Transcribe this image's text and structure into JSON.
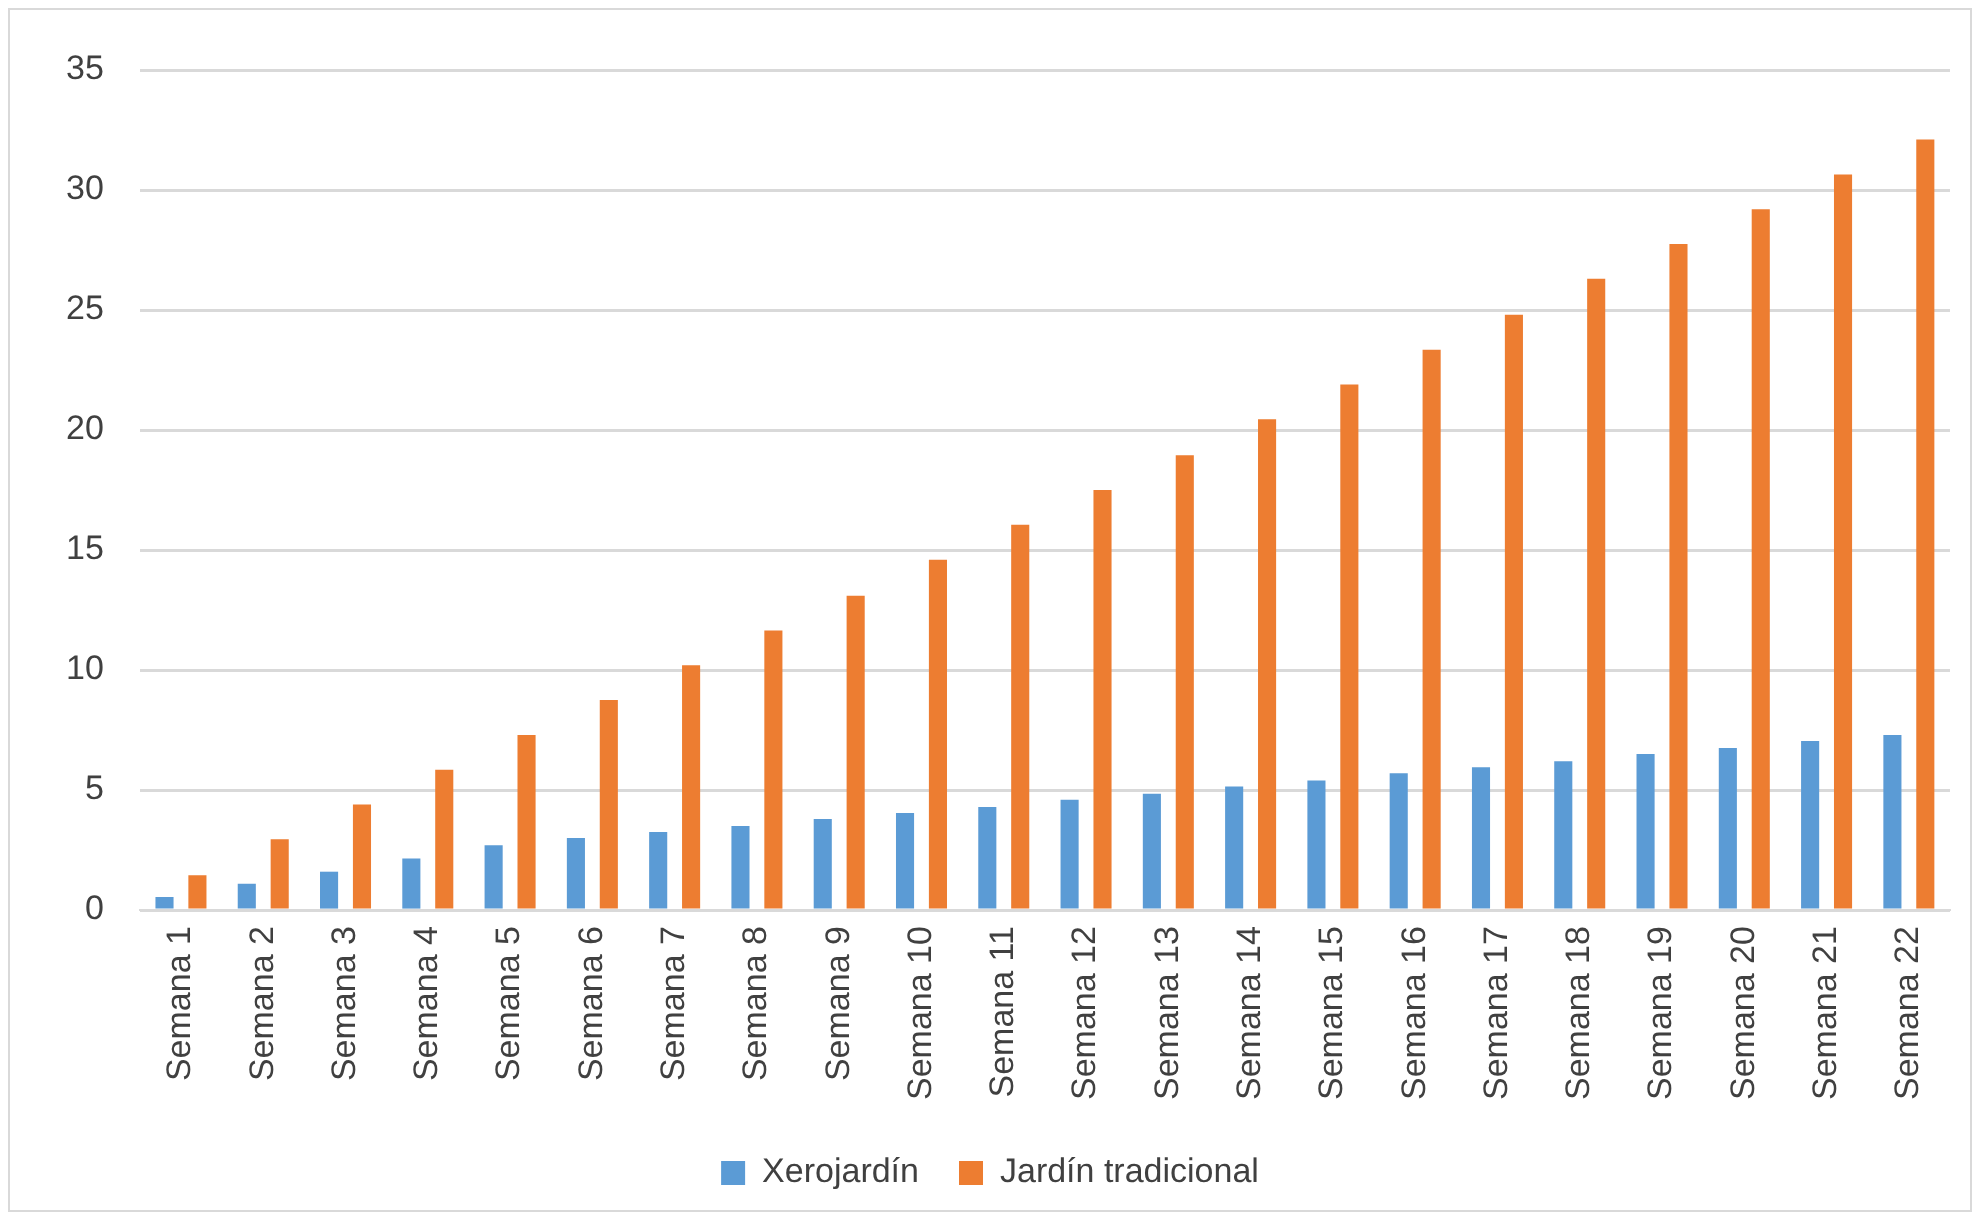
{
  "chart_data": {
    "type": "bar",
    "categories": [
      "Semana 1",
      "Semana 2",
      "Semana 3",
      "Semana 4",
      "Semana 5",
      "Semana 6",
      "Semana 7",
      "Semana 8",
      "Semana 9",
      "Semana 10",
      "Semana 11",
      "Semana 12",
      "Semana 13",
      "Semana 14",
      "Semana 15",
      "Semana 16",
      "Semana 17",
      "Semana 18",
      "Semana 19",
      "Semana 20",
      "Semana 21",
      "Semana 22"
    ],
    "series": [
      {
        "name": "Xerojardín",
        "color": "#5b9bd5",
        "values": [
          0.55,
          1.1,
          1.6,
          2.15,
          2.7,
          3.0,
          3.25,
          3.5,
          3.8,
          4.05,
          4.3,
          4.6,
          4.85,
          5.15,
          5.4,
          5.7,
          5.95,
          6.2,
          6.5,
          6.75,
          7.05,
          7.3
        ]
      },
      {
        "name": "Jardín tradicional",
        "color": "#ed7d31",
        "values": [
          1.45,
          2.95,
          4.4,
          5.85,
          7.3,
          8.75,
          10.2,
          11.65,
          13.1,
          14.6,
          16.05,
          17.5,
          18.95,
          20.45,
          21.9,
          23.35,
          24.8,
          26.3,
          27.75,
          29.2,
          30.65,
          32.1
        ]
      }
    ],
    "ylim": [
      0,
      35
    ],
    "yticks": [
      0,
      5,
      10,
      15,
      20,
      25,
      30,
      35
    ],
    "grid": "y",
    "legend": "bottom"
  }
}
